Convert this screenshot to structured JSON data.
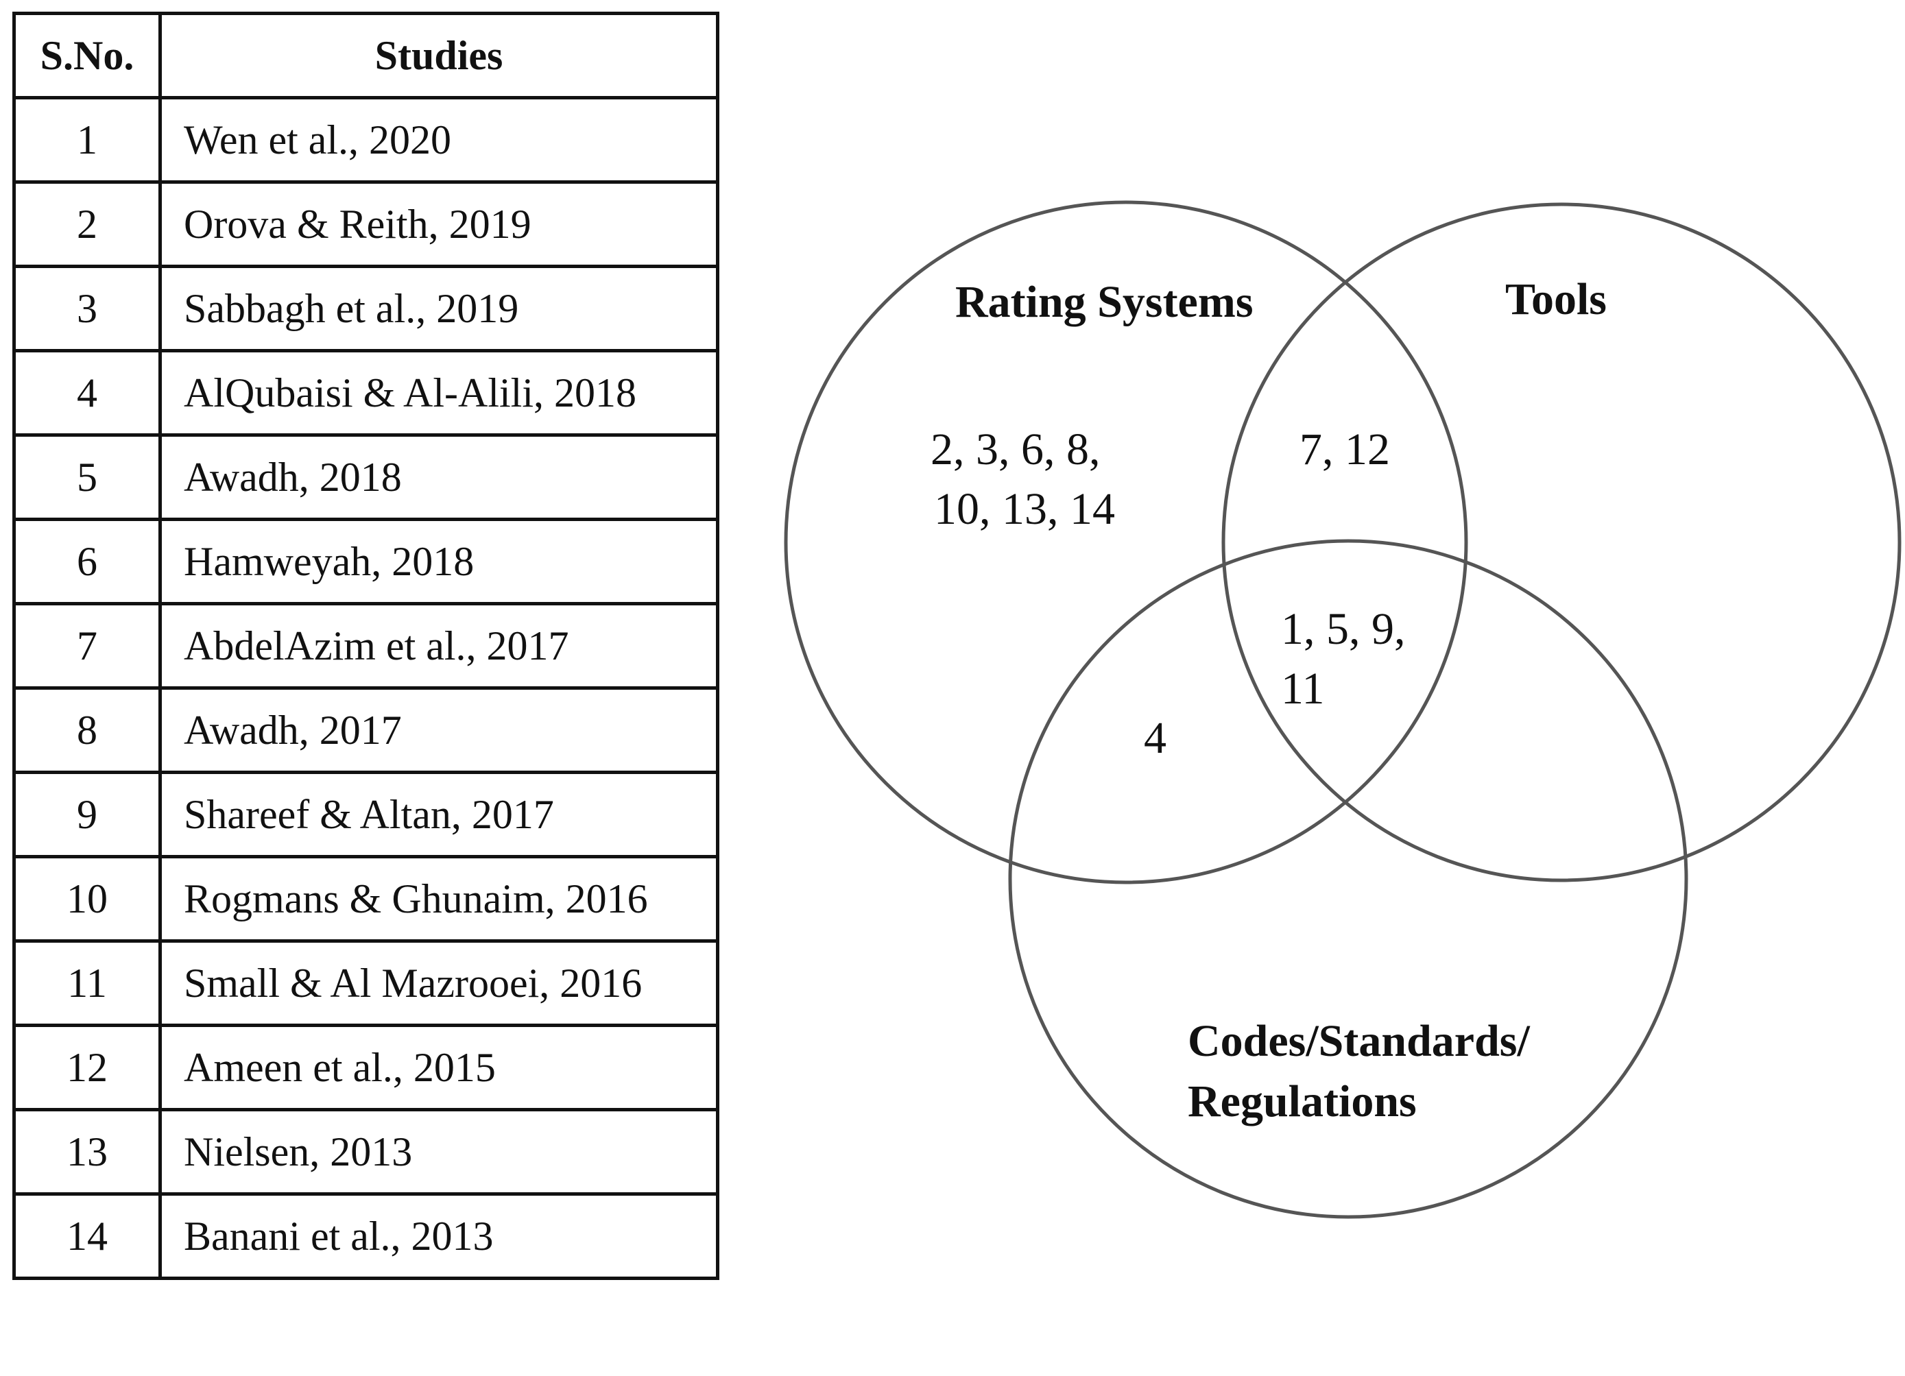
{
  "table": {
    "headers": {
      "number": "S.No.",
      "study": "Studies"
    },
    "rows": [
      {
        "number": "1",
        "study": "Wen et al., 2020"
      },
      {
        "number": "2",
        "study": "Orova & Reith, 2019"
      },
      {
        "number": "3",
        "study": "Sabbagh et al., 2019"
      },
      {
        "number": "4",
        "study": "AlQubaisi & Al-Alili, 2018"
      },
      {
        "number": "5",
        "study": "Awadh, 2018"
      },
      {
        "number": "6",
        "study": "Hamweyah, 2018"
      },
      {
        "number": "7",
        "study": "AbdelAzim et al., 2017"
      },
      {
        "number": "8",
        "study": "Awadh, 2017"
      },
      {
        "number": "9",
        "study": "Shareef & Altan, 2017"
      },
      {
        "number": "10",
        "study": "Rogmans & Ghunaim, 2016"
      },
      {
        "number": "11",
        "study": "Small & Al Mazrooei, 2016"
      },
      {
        "number": "12",
        "study": "Ameen et al., 2015"
      },
      {
        "number": "13",
        "study": "Nielsen, 2013"
      },
      {
        "number": "14",
        "study": "Banani et al., 2013"
      }
    ]
  },
  "venn": {
    "sets": {
      "rating_systems": "Rating Systems",
      "tools": "Tools",
      "codes": {
        "line1": "Codes/Standards/",
        "line2": "Regulations"
      }
    },
    "regions": {
      "rating_only": {
        "line1": "2, 3, 6, 8,",
        "line2": "10, 13, 14"
      },
      "rating_tools": "7, 12",
      "all_three": {
        "line1": "1, 5, 9,",
        "line2": "11"
      },
      "rating_codes": "4"
    }
  }
}
